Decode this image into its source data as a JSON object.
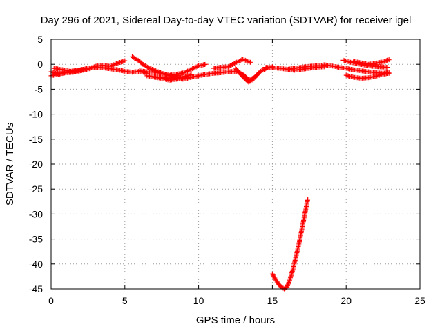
{
  "chart_data": {
    "type": "scatter",
    "title": "Day 296 of 2021, Sidereal Day-to-day VTEC variation (SDTVAR) for receiver igel",
    "xlabel": "GPS time / hours",
    "ylabel": "SDTVAR / TECUs",
    "xlim": [
      0,
      25
    ],
    "ylim": [
      -45,
      5
    ],
    "xticks": [
      0,
      5,
      10,
      15,
      20,
      25
    ],
    "yticks": [
      5,
      0,
      -5,
      -10,
      -15,
      -20,
      -25,
      -30,
      -35,
      -40,
      -45
    ],
    "grid": true,
    "marker": "plus",
    "color": "#ff0000",
    "series": [
      {
        "segments": [
          {
            "x": [
              0.0,
              0.3,
              0.6,
              1.0,
              1.5,
              2.0,
              2.5,
              3.0,
              3.5,
              4.0,
              4.5,
              5.0,
              5.5,
              6.0,
              6.5
            ],
            "y": [
              -1.5,
              -1.8,
              -1.9,
              -1.6,
              -1.3,
              -1.1,
              -0.8,
              -0.6,
              -0.7,
              -0.9,
              -1.1,
              -1.4,
              -1.6,
              -1.4,
              -1.8
            ]
          },
          {
            "x": [
              0.0,
              0.5,
              1.0,
              1.5,
              2.0,
              2.5,
              3.0,
              3.5,
              4.0,
              4.5,
              5.0
            ],
            "y": [
              -2.3,
              -2.0,
              -1.7,
              -1.6,
              -1.3,
              -1.0,
              -0.4,
              -0.2,
              -0.4,
              0.2,
              0.7
            ]
          },
          {
            "x": [
              0.2,
              0.6,
              1.0,
              1.4,
              1.8,
              2.2
            ],
            "y": [
              -0.8,
              -1.0,
              -1.2,
              -1.5,
              -1.3,
              -1.0
            ]
          },
          {
            "x": [
              5.5,
              5.9,
              6.3,
              6.7,
              7.1,
              7.5,
              7.9,
              8.3,
              8.7,
              9.1,
              9.5
            ],
            "y": [
              1.5,
              0.8,
              -0.2,
              -0.8,
              -1.3,
              -1.8,
              -2.2,
              -2.4,
              -2.6,
              -2.4,
              -2.1
            ]
          },
          {
            "x": [
              6.5,
              7.0,
              7.5,
              8.0,
              8.5,
              9.0,
              9.5,
              10.0,
              10.5,
              11.0,
              11.5,
              12.0,
              12.5,
              13.0,
              13.4,
              13.8,
              14.2,
              14.6,
              15.0
            ],
            "y": [
              -2.3,
              -2.5,
              -2.6,
              -2.8,
              -2.9,
              -3.0,
              -2.6,
              -2.3,
              -2.0,
              -1.8,
              -1.7,
              -1.5,
              -1.4,
              -2.0,
              -3.2,
              -2.6,
              -1.4,
              -0.8,
              -0.5
            ]
          },
          {
            "x": [
              6.0,
              6.5,
              7.0,
              7.5,
              8.0,
              8.5,
              9.0,
              9.5,
              10.0,
              10.5
            ],
            "y": [
              -1.3,
              -1.5,
              -1.6,
              -1.8,
              -2.2,
              -2.0,
              -1.7,
              -1.0,
              -0.3,
              0.0
            ]
          },
          {
            "x": [
              7.0,
              7.5,
              8.0,
              8.5,
              9.0,
              9.5
            ],
            "y": [
              -2.6,
              -2.8,
              -3.2,
              -3.0,
              -2.8,
              -2.5
            ]
          },
          {
            "x": [
              11.0,
              11.5,
              12.0,
              12.5,
              13.0,
              13.5
            ],
            "y": [
              -0.8,
              -0.6,
              -0.5,
              0.3,
              1.0,
              0.4
            ]
          },
          {
            "x": [
              12.5,
              12.8,
              13.1,
              13.4,
              13.7,
              14.0
            ],
            "y": [
              -0.8,
              -1.8,
              -2.8,
              -3.6,
              -3.0,
              -2.0
            ]
          },
          {
            "x": [
              14.5,
              15.0,
              15.5,
              16.0,
              16.5,
              17.0,
              17.5,
              18.0,
              18.5
            ],
            "y": [
              -0.6,
              -0.7,
              -0.8,
              -1.0,
              -1.2,
              -1.0,
              -0.8,
              -0.6,
              -0.5
            ]
          },
          {
            "x": [
              16.0,
              16.5,
              17.0,
              17.5,
              18.0,
              18.5
            ],
            "y": [
              -1.0,
              -0.8,
              -0.6,
              -0.4,
              -0.3,
              -0.3
            ]
          },
          {
            "x": [
              18.5,
              19.0,
              19.5,
              20.0,
              20.5,
              21.0,
              21.5,
              22.0,
              22.5,
              22.9
            ],
            "y": [
              -0.1,
              -0.3,
              -0.6,
              -0.8,
              -1.1,
              -1.3,
              -1.5,
              -1.7,
              -1.8,
              -1.6
            ]
          },
          {
            "x": [
              19.8,
              20.3,
              20.8,
              21.3,
              21.8,
              22.3,
              22.8
            ],
            "y": [
              0.8,
              0.4,
              0.1,
              -0.2,
              -0.4,
              -0.5,
              -0.6
            ]
          },
          {
            "x": [
              20.0,
              20.5,
              21.0,
              21.5,
              22.0,
              22.5,
              22.9
            ],
            "y": [
              -2.2,
              -2.6,
              -2.8,
              -2.7,
              -2.4,
              -2.0,
              -1.8
            ]
          },
          {
            "x": [
              20.5,
              21.0,
              21.5,
              22.0,
              22.5,
              22.9
            ],
            "y": [
              0.6,
              0.3,
              0.0,
              0.2,
              0.5,
              0.9
            ]
          },
          {
            "x": [
              15.0,
              15.2,
              15.4,
              15.6,
              15.8,
              16.0,
              16.2,
              16.4,
              16.6,
              16.8,
              17.0,
              17.2,
              17.4
            ],
            "y": [
              -42.0,
              -43.0,
              -44.0,
              -44.6,
              -45.0,
              -44.6,
              -43.0,
              -41.0,
              -38.5,
              -36.0,
              -33.0,
              -30.0,
              -27.0
            ]
          }
        ]
      }
    ]
  }
}
